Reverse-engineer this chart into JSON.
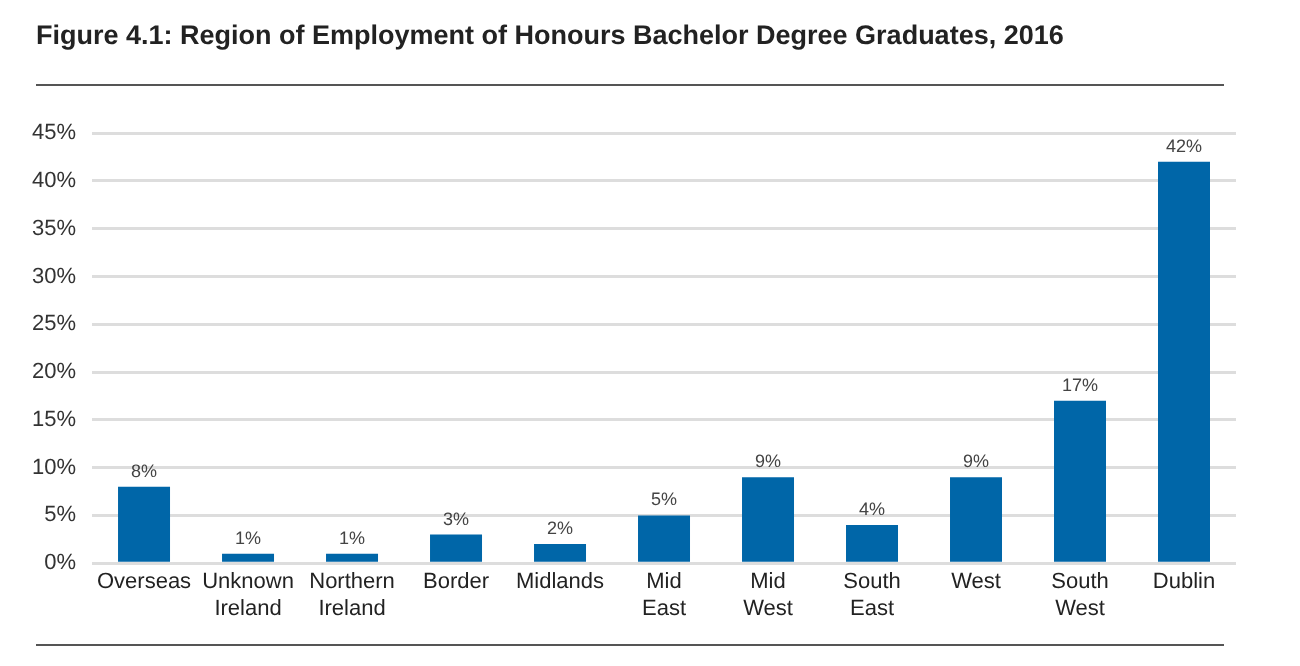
{
  "chart_data": {
    "type": "bar",
    "title": "Figure 4.1:  Region of Employment of Honours Bachelor Degree Graduates, 2016",
    "categories": [
      "Overseas",
      "Unknown Ireland",
      "Northern Ireland",
      "Border",
      "Midlands",
      "Mid East",
      "Mid West",
      "South East",
      "West",
      "South West",
      "Dublin"
    ],
    "values": [
      8,
      1,
      1,
      3,
      2,
      5,
      9,
      4,
      9,
      17,
      42
    ],
    "value_labels": [
      "8%",
      "1%",
      "1%",
      "3%",
      "2%",
      "5%",
      "9%",
      "4%",
      "9%",
      "17%",
      "42%"
    ],
    "color": "#0066a8",
    "ylim": [
      0,
      45
    ],
    "yticks": [
      {
        "value": 0,
        "label": "0%"
      },
      {
        "value": 5,
        "label": "5%"
      },
      {
        "value": 10,
        "label": "10%"
      },
      {
        "value": 15,
        "label": "15%"
      },
      {
        "value": 20,
        "label": "20%"
      },
      {
        "value": 25,
        "label": "25%"
      },
      {
        "value": 30,
        "label": "30%"
      },
      {
        "value": 35,
        "label": "35%"
      },
      {
        "value": 40,
        "label": "40%"
      },
      {
        "value": 45,
        "label": "45%"
      }
    ],
    "grid": "y"
  }
}
